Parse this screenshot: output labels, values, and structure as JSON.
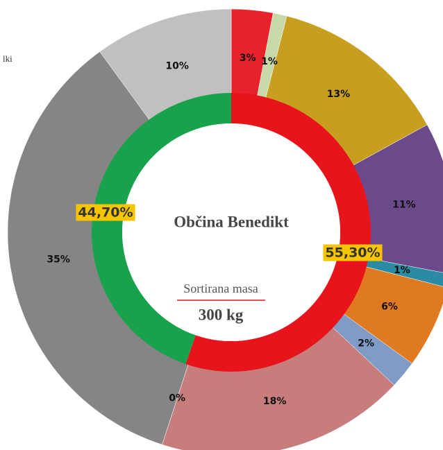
{
  "legend_fragment": "lki",
  "chart_data": {
    "type": "donut",
    "title": "Občina Benedikt",
    "subtitle": "Sortirana masa",
    "center_label": "300 kg",
    "rings": [
      {
        "values": [
          3,
          1,
          13,
          11,
          1,
          6,
          2,
          18,
          0,
          35,
          10
        ],
        "value_labels": [
          "3%",
          "1%",
          "13%",
          "11%",
          "1%",
          "6%",
          "2%",
          "18%",
          "0%",
          "35%",
          "10%"
        ],
        "colors": [
          "#e8222a",
          "#c7d9a8",
          "#c89e1f",
          "#6b4a8c",
          "#2a8ba2",
          "#e07a22",
          "#7f9bc6",
          "#c67d7b",
          "#c7d9a8",
          "#858585",
          "#c0c0c0"
        ]
      },
      {
        "values": [
          55.3,
          44.7
        ],
        "value_labels": [
          "55,30%",
          "44,70%"
        ],
        "colors": [
          "#e8141c",
          "#18a24b"
        ]
      }
    ]
  }
}
